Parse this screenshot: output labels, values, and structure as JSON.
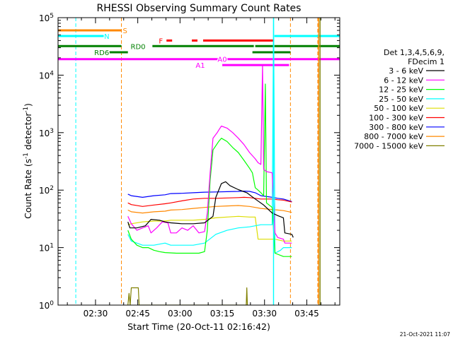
{
  "chart_data": {
    "type": "line",
    "title": "RHESSI Observing Summary Count Rates",
    "xlabel": "Start Time (20-Oct-11 02:16:42)",
    "ylabel": "Count Rate (s⁻¹ detector⁻¹)",
    "ylabel_parts": [
      "Count Rate (s",
      "-1",
      " detector",
      "-1",
      ")"
    ],
    "y_scale": "log",
    "ylim": [
      1,
      100000
    ],
    "y_ticks": [
      {
        "value": 1,
        "base": "10",
        "exp": "0"
      },
      {
        "value": 10,
        "base": "10",
        "exp": "1"
      },
      {
        "value": 100,
        "base": "10",
        "exp": "2"
      },
      {
        "value": 1000,
        "base": "10",
        "exp": "3"
      },
      {
        "value": 10000,
        "base": "10",
        "exp": "4"
      },
      {
        "value": 100000,
        "base": "10",
        "exp": "5"
      }
    ],
    "xlim_minutes": [
      0,
      100
    ],
    "x_ticks": [
      {
        "min": 13.3,
        "label": "02:30"
      },
      {
        "min": 28.3,
        "label": "02:45"
      },
      {
        "min": 43.3,
        "label": "03:00"
      },
      {
        "min": 58.3,
        "label": "03:15"
      },
      {
        "min": 73.3,
        "label": "03:30"
      },
      {
        "min": 88.3,
        "label": "03:45"
      }
    ],
    "legend_title": [
      "Det 1,3,4,5,6,9,",
      "FDecim 1"
    ],
    "series": [
      {
        "name": "3 - 6 keV",
        "color": "#000000",
        "points": [
          [
            24.8,
            28
          ],
          [
            25.5,
            22
          ],
          [
            28,
            22
          ],
          [
            31,
            24
          ],
          [
            33,
            31
          ],
          [
            36,
            30
          ],
          [
            38,
            28
          ],
          [
            40,
            27
          ],
          [
            44,
            26
          ],
          [
            48,
            26
          ],
          [
            52,
            27
          ],
          [
            55,
            35
          ],
          [
            56,
            75
          ],
          [
            58,
            130
          ],
          [
            59.5,
            140
          ],
          [
            61,
            120
          ],
          [
            64,
            102
          ],
          [
            67,
            90
          ],
          [
            70,
            70
          ],
          [
            73,
            55
          ],
          [
            76,
            40
          ],
          [
            78,
            36
          ],
          [
            80,
            33
          ],
          [
            80.5,
            18
          ],
          [
            83,
            17
          ],
          [
            83.5,
            15
          ]
        ]
      },
      {
        "name": "6 - 12 keV",
        "color": "#ff00ff",
        "points": [
          [
            24.8,
            35
          ],
          [
            26,
            26
          ],
          [
            28,
            20
          ],
          [
            30,
            22
          ],
          [
            32,
            24
          ],
          [
            33,
            18
          ],
          [
            35,
            22
          ],
          [
            37,
            28
          ],
          [
            39,
            27
          ],
          [
            40,
            18
          ],
          [
            42,
            18
          ],
          [
            44,
            22
          ],
          [
            46,
            20
          ],
          [
            48,
            24
          ],
          [
            50,
            18
          ],
          [
            52,
            19
          ],
          [
            53,
            40
          ],
          [
            54,
            200
          ],
          [
            55,
            800
          ],
          [
            56.5,
            1000
          ],
          [
            57,
            1100
          ],
          [
            58,
            1300
          ],
          [
            60,
            1200
          ],
          [
            62,
            1000
          ],
          [
            64,
            800
          ],
          [
            66,
            620
          ],
          [
            68,
            450
          ],
          [
            70,
            350
          ],
          [
            71,
            300
          ],
          [
            72,
            280
          ],
          [
            72.6,
            15000
          ],
          [
            73,
            230
          ],
          [
            74,
            210
          ],
          [
            76,
            200
          ],
          [
            77,
            18
          ],
          [
            78,
            15
          ],
          [
            80,
            14
          ],
          [
            80.5,
            12
          ],
          [
            83,
            12
          ]
        ]
      },
      {
        "name": "12 - 25 keV",
        "color": "#00ff00",
        "points": [
          [
            24.8,
            20
          ],
          [
            26,
            14
          ],
          [
            28,
            11
          ],
          [
            30,
            10
          ],
          [
            32,
            10
          ],
          [
            34,
            9
          ],
          [
            36,
            8.5
          ],
          [
            38,
            8.2
          ],
          [
            42,
            8
          ],
          [
            46,
            8
          ],
          [
            50,
            8
          ],
          [
            52,
            8.5
          ],
          [
            53,
            20
          ],
          [
            54,
            150
          ],
          [
            55,
            500
          ],
          [
            57,
            700
          ],
          [
            58,
            800
          ],
          [
            60,
            700
          ],
          [
            62,
            550
          ],
          [
            64,
            450
          ],
          [
            66,
            330
          ],
          [
            68,
            240
          ],
          [
            69,
            200
          ],
          [
            70,
            110
          ],
          [
            71,
            100
          ],
          [
            72,
            90
          ],
          [
            73,
            80
          ],
          [
            73.6,
            7000
          ],
          [
            74,
            60
          ],
          [
            76,
            50
          ],
          [
            77,
            8
          ],
          [
            80,
            7
          ],
          [
            83,
            7
          ]
        ]
      },
      {
        "name": "25 - 50 keV",
        "color": "#00ffff",
        "points": [
          [
            24.8,
            17
          ],
          [
            26,
            13
          ],
          [
            28,
            12
          ],
          [
            30,
            11
          ],
          [
            34,
            11
          ],
          [
            38,
            12
          ],
          [
            40,
            11
          ],
          [
            44,
            11
          ],
          [
            48,
            11
          ],
          [
            52,
            12
          ],
          [
            56,
            17
          ],
          [
            60,
            20
          ],
          [
            64,
            22
          ],
          [
            68,
            23
          ],
          [
            70,
            24
          ],
          [
            72,
            25
          ],
          [
            76,
            25
          ],
          [
            76.5,
            100000
          ],
          [
            77,
            8
          ],
          [
            79,
            9
          ],
          [
            80,
            10
          ],
          [
            83,
            10
          ]
        ]
      },
      {
        "name": "50 - 100 keV",
        "color": "#dddd00",
        "points": [
          [
            24.8,
            25
          ],
          [
            26,
            26
          ],
          [
            30,
            28
          ],
          [
            34,
            29
          ],
          [
            38,
            29
          ],
          [
            40,
            30
          ],
          [
            44,
            30
          ],
          [
            48,
            30
          ],
          [
            52,
            31
          ],
          [
            56,
            33
          ],
          [
            60,
            34
          ],
          [
            64,
            35
          ],
          [
            68,
            34
          ],
          [
            70,
            34
          ],
          [
            71,
            14
          ],
          [
            74,
            14
          ],
          [
            77,
            14
          ],
          [
            80,
            13
          ],
          [
            83,
            13
          ]
        ]
      },
      {
        "name": "100 - 300 keV",
        "color": "#ff0000",
        "points": [
          [
            24.8,
            60
          ],
          [
            26,
            56
          ],
          [
            30,
            52
          ],
          [
            34,
            55
          ],
          [
            38,
            58
          ],
          [
            40,
            60
          ],
          [
            44,
            65
          ],
          [
            48,
            70
          ],
          [
            52,
            72
          ],
          [
            56,
            72
          ],
          [
            60,
            73
          ],
          [
            64,
            74
          ],
          [
            66,
            75
          ],
          [
            68,
            74
          ],
          [
            70,
            72
          ],
          [
            72,
            70
          ],
          [
            76,
            70
          ],
          [
            78,
            68
          ],
          [
            80,
            67
          ],
          [
            83,
            62
          ]
        ]
      },
      {
        "name": "300 - 800 keV",
        "color": "#0000ff",
        "points": [
          [
            24.8,
            85
          ],
          [
            26,
            80
          ],
          [
            30,
            75
          ],
          [
            34,
            80
          ],
          [
            38,
            83
          ],
          [
            40,
            87
          ],
          [
            44,
            88
          ],
          [
            48,
            90
          ],
          [
            52,
            92
          ],
          [
            56,
            93
          ],
          [
            60,
            94
          ],
          [
            64,
            95
          ],
          [
            66,
            96
          ],
          [
            68,
            95
          ],
          [
            70,
            90
          ],
          [
            72,
            80
          ],
          [
            76,
            75
          ],
          [
            78,
            72
          ],
          [
            80,
            70
          ],
          [
            83,
            63
          ]
        ]
      },
      {
        "name": "800 - 7000 keV",
        "color": "#ff8800",
        "points": [
          [
            24.8,
            45
          ],
          [
            26,
            42
          ],
          [
            30,
            40
          ],
          [
            34,
            42
          ],
          [
            38,
            43
          ],
          [
            40,
            45
          ],
          [
            44,
            46
          ],
          [
            48,
            48
          ],
          [
            52,
            50
          ],
          [
            56,
            52
          ],
          [
            60,
            53
          ],
          [
            64,
            54
          ],
          [
            68,
            52
          ],
          [
            70,
            50
          ],
          [
            72,
            48
          ],
          [
            76,
            46
          ],
          [
            78,
            45
          ],
          [
            80,
            44
          ],
          [
            83,
            41
          ]
        ]
      },
      {
        "name": "7000 - 15000 keV",
        "color": "#808000",
        "points": [
          [
            24.8,
            1
          ],
          [
            25.2,
            1.6
          ],
          [
            25.6,
            1
          ],
          [
            26,
            2
          ],
          [
            28.5,
            2
          ],
          [
            28.8,
            1
          ],
          [
            66.8,
            1
          ],
          [
            67,
            2
          ],
          [
            67.2,
            1
          ]
        ]
      }
    ],
    "attenuator_spikes": [
      {
        "color": "#00ffff",
        "minute": 76.5
      },
      {
        "color": "#ff8800",
        "minute": 92.5
      },
      {
        "color": "#808000",
        "minute": 93
      }
    ],
    "vertical_markers": [
      {
        "minute": 6.3,
        "color": "#00ffff"
      },
      {
        "minute": 22.5,
        "color": "#ff8800"
      },
      {
        "minute": 76.5,
        "color": "#00ffff"
      },
      {
        "minute": 82.5,
        "color": "#ff8800"
      },
      {
        "minute": 92.2,
        "color": "#ff8800"
      }
    ],
    "flag_bars": [
      {
        "label": "S",
        "color": "#ff8800",
        "label_color": "#ff8800",
        "y_value": 60000,
        "label_minute": 23.8,
        "segments": [
          [
            0,
            22.5
          ]
        ]
      },
      {
        "label": "N",
        "color": "#00ffff",
        "label_color": "#00ffff",
        "y_value": 48000,
        "label_minute": 17.3,
        "segments": [
          [
            0,
            16.5
          ],
          [
            76.8,
            100
          ]
        ]
      },
      {
        "label": "F",
        "color": "#ff0000",
        "label_color": "#ff0000",
        "y_value": 40000,
        "label_minute": 36.5,
        "segments": [
          [
            38.5,
            40.5
          ],
          [
            47.5,
            49.5
          ],
          [
            51.5,
            76.5
          ]
        ]
      },
      {
        "label": "RD0",
        "color": "#008000",
        "label_color": "#008000",
        "y_value": 32000,
        "label_minute": 28.4,
        "segments": [
          [
            0,
            22.5
          ],
          [
            33.5,
            69.5
          ],
          [
            70,
            76.5
          ],
          [
            76.8,
            100
          ]
        ]
      },
      {
        "label": "RD6",
        "color": "#008000",
        "label_color": "#008000",
        "y_value": 25000,
        "label_minute": 15.5,
        "segments": [
          [
            16,
            24.8
          ],
          [
            69,
            82.5
          ]
        ]
      },
      {
        "label": "A0",
        "color": "#ff00ff",
        "label_color": "#ff00ff",
        "y_value": 19000,
        "label_minute": 58.3,
        "segments": [
          [
            0,
            100
          ]
        ]
      },
      {
        "label": "A1",
        "color": "#ff00ff",
        "label_color": "#ff00ff",
        "y_value": 15000,
        "label_minute": 50.5,
        "segments": [
          [
            58.3,
            82
          ]
        ]
      }
    ],
    "legend_position": "right",
    "grid": false
  },
  "footer": {
    "timestamp": "21-Oct-2021 11:07"
  }
}
